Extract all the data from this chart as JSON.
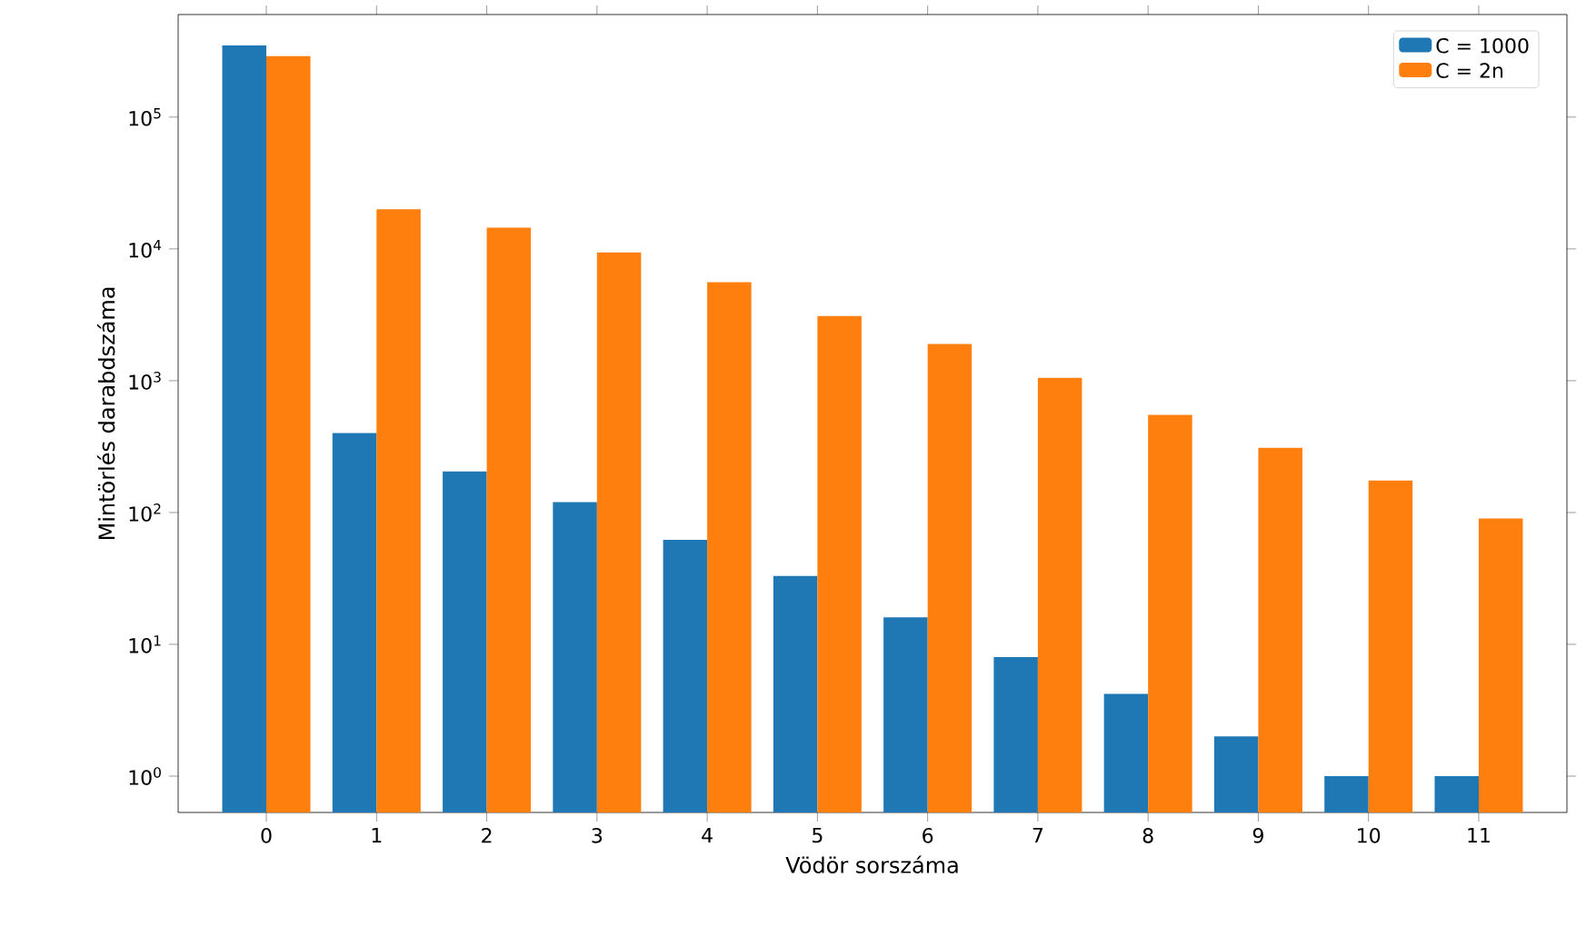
{
  "chart_data": {
    "type": "bar",
    "xlabel": "Vödör sorszáma",
    "ylabel": "Mintörlés darabdszáma",
    "categories": [
      "0",
      "1",
      "2",
      "3",
      "4",
      "5",
      "6",
      "7",
      "8",
      "9",
      "10",
      "11"
    ],
    "series": [
      {
        "name": "C = 1000",
        "color": "#1f77b4",
        "values": [
          350000,
          400,
          205,
          120,
          62,
          33,
          16,
          8,
          4.2,
          2,
          1,
          1
        ]
      },
      {
        "name": "C = 2n",
        "color": "#ff7f0e",
        "values": [
          290000,
          20000,
          14500,
          9400,
          5600,
          3100,
          1900,
          1050,
          550,
          310,
          175,
          90
        ]
      }
    ],
    "log": "y",
    "ylim": [
      0.53,
      600000
    ],
    "yticks": [
      {
        "value": 1,
        "label": "10$^{0}$"
      },
      {
        "value": 10,
        "label": "10$^{1}$"
      },
      {
        "value": 100,
        "label": "10$^{2}$"
      },
      {
        "value": 1000,
        "label": "10$^{3}$"
      },
      {
        "value": 10000,
        "label": "10$^{4}$"
      },
      {
        "value": 100000,
        "label": "10$^{5}$"
      }
    ],
    "legend": "top right",
    "grid": false
  }
}
